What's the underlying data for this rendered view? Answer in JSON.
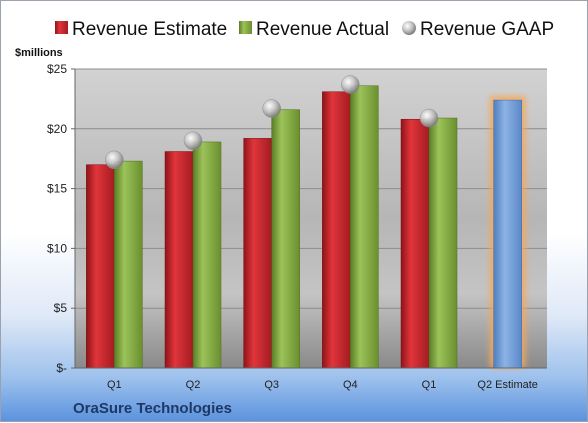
{
  "chart_data": {
    "type": "bar",
    "title": "",
    "company": "OraSure Technologies",
    "y_unit_label": "$millions",
    "categories": [
      "Q1",
      "Q2",
      "Q3",
      "Q4",
      "Q1",
      "Q2 Estimate"
    ],
    "yticks": [
      "$-",
      "$5",
      "$10",
      "$15",
      "$20",
      "$25"
    ],
    "ylim": [
      0,
      25
    ],
    "grid": true,
    "legend_position": "top",
    "series": [
      {
        "name": "Revenue Estimate",
        "type": "bar",
        "color": "#c0262c",
        "values": [
          17.0,
          18.1,
          19.2,
          23.1,
          20.8,
          null
        ]
      },
      {
        "name": "Revenue Actual",
        "type": "bar",
        "color": "#7ea63a",
        "values": [
          17.3,
          18.9,
          21.6,
          23.6,
          20.9,
          null
        ]
      },
      {
        "name": "Revenue GAAP",
        "type": "marker",
        "color": "#b8b8b8",
        "values": [
          17.4,
          19.0,
          21.7,
          23.7,
          20.9,
          null
        ]
      },
      {
        "name": "Q2 Estimate",
        "type": "bar",
        "color": "#6f9bd4",
        "highlight": "#f5a85a",
        "values": [
          null,
          null,
          null,
          null,
          null,
          22.4
        ]
      }
    ]
  }
}
